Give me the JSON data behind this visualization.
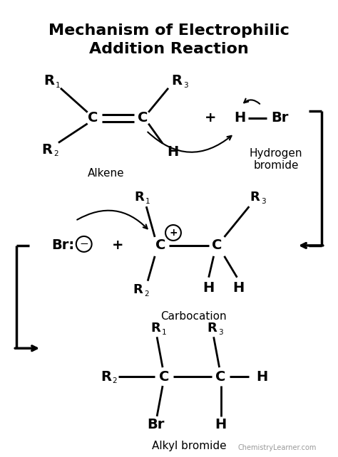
{
  "title_line1": "Mechanism of Electrophilic",
  "title_line2": "Addition Reaction",
  "bg_color": "#ffffff",
  "text_color": "#000000",
  "watermark": "ChemistryLearner.com"
}
